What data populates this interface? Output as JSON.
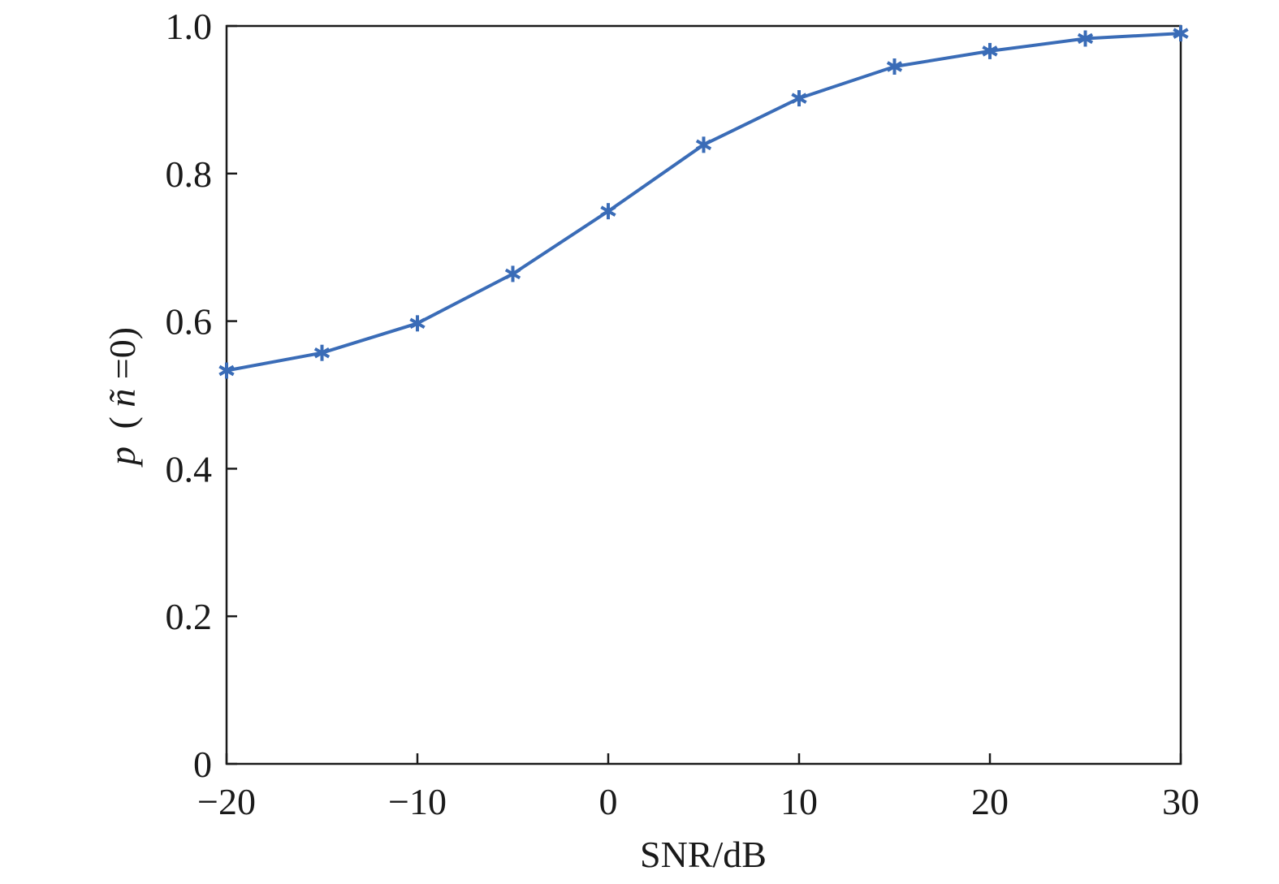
{
  "chart_data": {
    "type": "line",
    "title": "",
    "xlabel": "SNR/dB",
    "ylabel": {
      "var": "p",
      "open": "(",
      "ntilde": "ñ",
      "rest": "=0)"
    },
    "xlim": [
      -20,
      30
    ],
    "ylim": [
      0,
      1.0
    ],
    "grid": false,
    "xticks": [
      -20,
      -10,
      0,
      10,
      20,
      30
    ],
    "xtick_labels": [
      "−20",
      "−10",
      "0",
      "10",
      "20",
      "30"
    ],
    "yticks": [
      0,
      0.2,
      0.4,
      0.6,
      0.8,
      1.0
    ],
    "ytick_labels": [
      "0",
      "0.2",
      "0.4",
      "0.6",
      "0.8",
      "1.0"
    ],
    "series": [
      {
        "color": "#3a6cb7",
        "marker": "asterisk",
        "x": [
          -20,
          -15,
          -10,
          -5,
          0,
          5,
          10,
          15,
          20,
          25,
          30
        ],
        "y": [
          0.533,
          0.557,
          0.597,
          0.664,
          0.749,
          0.839,
          0.902,
          0.945,
          0.966,
          0.983,
          0.99
        ]
      }
    ]
  }
}
